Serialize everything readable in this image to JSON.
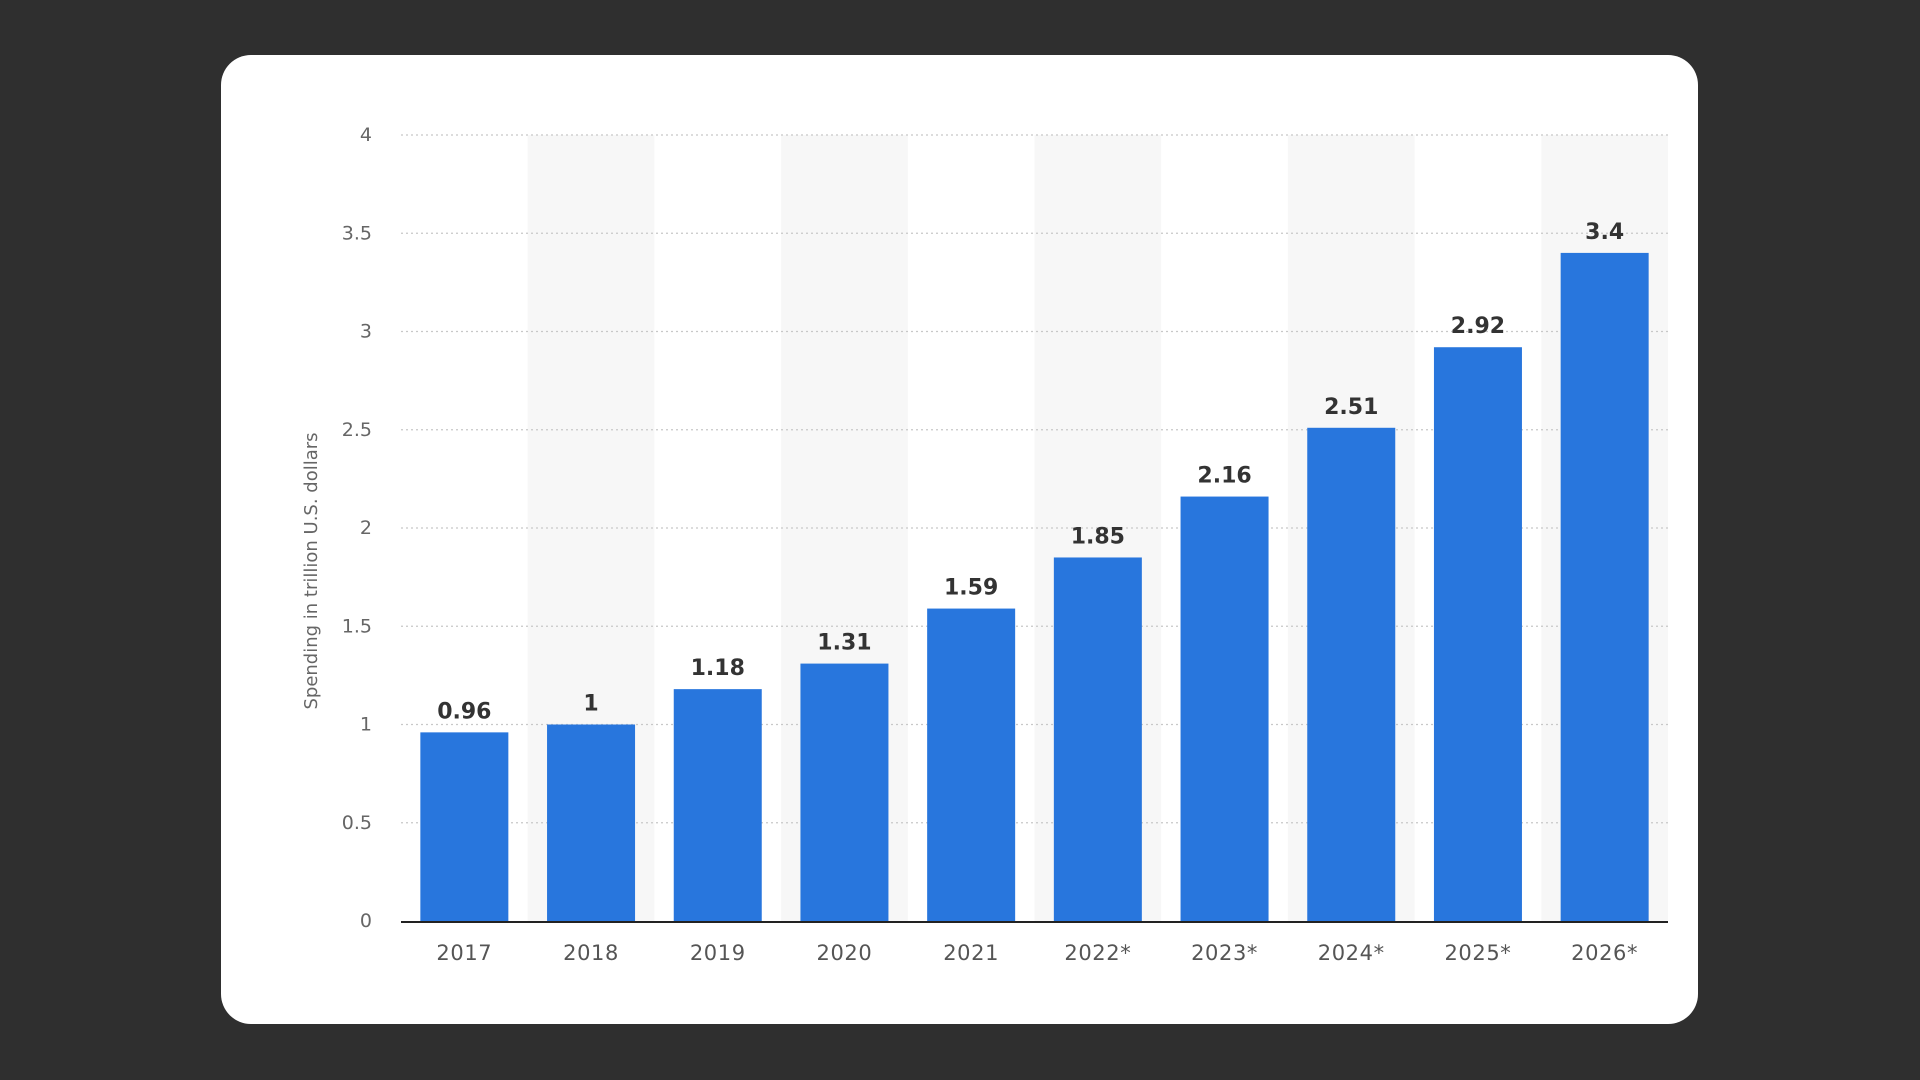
{
  "chart_data": {
    "type": "bar",
    "title": "",
    "xlabel": "",
    "ylabel": "Spending in trillion U.S. dollars",
    "categories": [
      "2017",
      "2018",
      "2019",
      "2020",
      "2021",
      "2022*",
      "2023*",
      "2024*",
      "2025*",
      "2026*"
    ],
    "values": [
      0.96,
      1,
      1.18,
      1.31,
      1.59,
      1.85,
      2.16,
      2.51,
      2.92,
      3.4
    ],
    "value_labels": [
      "0.96",
      "1",
      "1.18",
      "1.31",
      "1.59",
      "1.85",
      "2.16",
      "2.51",
      "2.92",
      "3.4"
    ],
    "ylim": [
      0,
      4
    ],
    "yticks": [
      0,
      0.5,
      1,
      1.5,
      2,
      2.5,
      3,
      3.5,
      4
    ],
    "ytick_labels": [
      "0",
      "0.5",
      "1",
      "1.5",
      "2",
      "2.5",
      "3",
      "3.5",
      "4"
    ],
    "grid": true,
    "legend": "none",
    "colors": {
      "bar": "#2876dd",
      "band": "#f7f7f7",
      "grid": "#c8c8c8",
      "axis": "#222222"
    }
  }
}
